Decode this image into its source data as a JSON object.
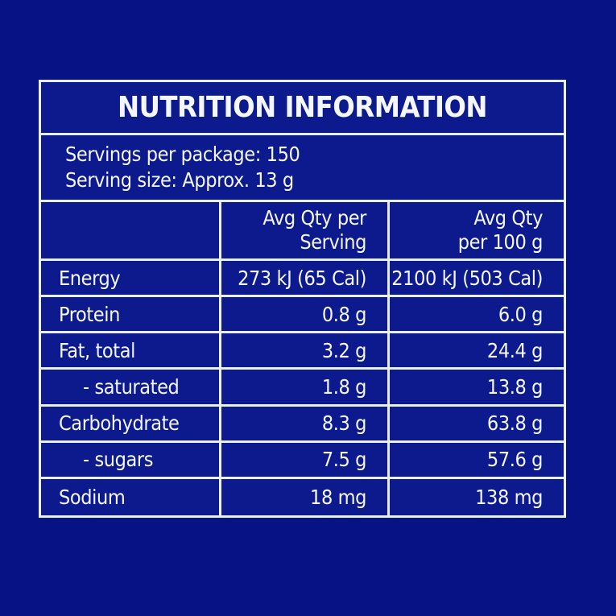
{
  "title": "NUTRITION INFORMATION",
  "servings": {
    "per_package": "Servings per package: 150",
    "size": "Serving size: Approx. 13 g"
  },
  "header": {
    "col2_line1": "Avg Qty per",
    "col2_line2": "Serving",
    "col3_line1": "Avg Qty",
    "col3_line2": "per 100 g"
  },
  "rows": [
    {
      "label": "Energy",
      "per_serving": "273 kJ (65 Cal)",
      "per_100g": "2100 kJ (503 Cal)",
      "indent": false
    },
    {
      "label": "Protein",
      "per_serving": "0.8 g",
      "per_100g": "6.0 g",
      "indent": false
    },
    {
      "label": "Fat, total",
      "per_serving": "3.2 g",
      "per_100g": "24.4 g",
      "indent": false
    },
    {
      "label": "- saturated",
      "per_serving": "1.8 g",
      "per_100g": "13.8 g",
      "indent": true
    },
    {
      "label": "Carbohydrate",
      "per_serving": "8.3 g",
      "per_100g": "63.8 g",
      "indent": false
    },
    {
      "label": "- sugars",
      "per_serving": "7.5 g",
      "per_100g": "57.6 g",
      "indent": true
    },
    {
      "label": "Sodium",
      "per_serving": "18 mg",
      "per_100g": "138 mg",
      "indent": false
    }
  ],
  "colors": {
    "page_bg": "#071284",
    "panel_bg": "#0c1a8d",
    "line": "#e9eefb",
    "text": "#f4f7fd"
  }
}
